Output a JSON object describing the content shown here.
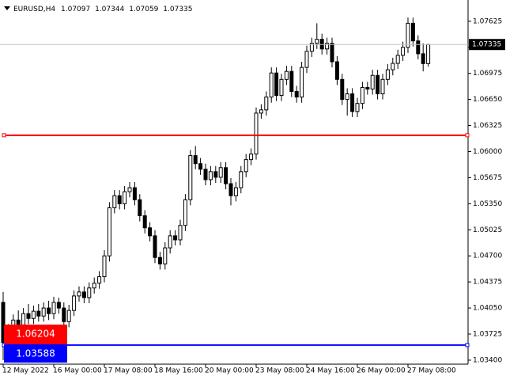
{
  "chart_data": {
    "type": "candlestick",
    "symbol": "EURUSD,H4",
    "categories": [
      "12 May 2022",
      null,
      null,
      null,
      null,
      null,
      null,
      null,
      null,
      null,
      "16 May 00:00",
      null,
      null,
      null,
      null,
      null,
      null,
      null,
      null,
      null,
      "17 May 08:00",
      null,
      null,
      null,
      null,
      null,
      null,
      null,
      null,
      null,
      "18 May 16:00",
      null,
      null,
      null,
      null,
      null,
      null,
      null,
      null,
      null,
      "20 May 00:00",
      null,
      null,
      null,
      null,
      null,
      null,
      null,
      null,
      null,
      "23 May 08:00",
      null,
      null,
      null,
      null,
      null,
      null,
      null,
      null,
      null,
      "24 May 16:00",
      null,
      null,
      null,
      null,
      null,
      null,
      null,
      null,
      null,
      "26 May 00:00",
      null,
      null,
      null,
      null,
      null,
      null,
      null,
      null,
      null,
      "27 May 08:00",
      null,
      null,
      null,
      null
    ],
    "open": [
      1.0412,
      1.0362,
      1.0378,
      1.039,
      1.0384,
      1.0398,
      1.0392,
      1.0401,
      1.0395,
      1.0405,
      1.0398,
      1.0412,
      1.0405,
      1.0388,
      1.0402,
      1.042,
      1.0425,
      1.0418,
      1.043,
      1.0436,
      1.0444,
      1.047,
      1.053,
      1.0545,
      1.0535,
      1.055,
      1.0555,
      1.054,
      1.052,
      1.0505,
      1.0495,
      1.0468,
      1.046,
      1.048,
      1.0495,
      1.049,
      1.0508,
      1.054,
      1.0595,
      1.0585,
      1.0578,
      1.0565,
      1.0575,
      1.0568,
      1.058,
      1.056,
      1.0545,
      1.0555,
      1.0575,
      1.059,
      1.0597,
      1.0648,
      1.0652,
      1.0668,
      1.0698,
      1.067,
      1.069,
      1.07,
      1.0675,
      1.0668,
      1.0705,
      1.0725,
      1.0735,
      1.074,
      1.0728,
      1.0735,
      1.0712,
      1.069,
      1.0665,
      1.0672,
      1.065,
      1.066,
      1.068,
      1.0678,
      1.0695,
      1.0672,
      1.069,
      1.0702,
      1.071,
      1.072,
      1.073,
      1.076,
      1.0738,
      1.0722,
      1.07097
    ],
    "high": [
      1.0425,
      1.0385,
      1.0397,
      1.0402,
      1.0405,
      1.041,
      1.0408,
      1.041,
      1.0412,
      1.0414,
      1.0419,
      1.0418,
      1.0412,
      1.0409,
      1.0427,
      1.0432,
      1.0432,
      1.0437,
      1.0443,
      1.0451,
      1.0477,
      1.0537,
      1.0552,
      1.0552,
      1.0557,
      1.0562,
      1.0562,
      1.0547,
      1.0527,
      1.0512,
      1.0502,
      1.0475,
      1.0487,
      1.0502,
      1.0502,
      1.0515,
      1.0547,
      1.0602,
      1.0607,
      1.0592,
      1.0585,
      1.0582,
      1.0582,
      1.0587,
      1.0587,
      1.0567,
      1.0562,
      1.0582,
      1.0597,
      1.0604,
      1.0655,
      1.0659,
      1.0675,
      1.0705,
      1.0705,
      1.0697,
      1.0707,
      1.0707,
      1.0682,
      1.0712,
      1.0732,
      1.0742,
      1.076,
      1.0747,
      1.0742,
      1.0742,
      1.0719,
      1.0697,
      1.0679,
      1.0679,
      1.0667,
      1.0687,
      1.0687,
      1.0702,
      1.0702,
      1.0697,
      1.0709,
      1.0717,
      1.0727,
      1.0737,
      1.0767,
      1.0767,
      1.0745,
      1.0735,
      1.07344
    ],
    "low": [
      1.034,
      1.0355,
      1.0371,
      1.0377,
      1.0377,
      1.0385,
      1.0385,
      1.0388,
      1.0388,
      1.039,
      1.0391,
      1.0398,
      1.038,
      1.0381,
      1.0395,
      1.0413,
      1.0411,
      1.0411,
      1.0423,
      1.0429,
      1.0437,
      1.0463,
      1.0523,
      1.0528,
      1.0528,
      1.0543,
      1.0533,
      1.0513,
      1.0498,
      1.0488,
      1.0461,
      1.0453,
      1.0453,
      1.0473,
      1.0483,
      1.0483,
      1.0501,
      1.0533,
      1.0578,
      1.0571,
      1.0558,
      1.0558,
      1.0561,
      1.0561,
      1.0553,
      1.0533,
      1.0538,
      1.0548,
      1.0568,
      1.0583,
      1.059,
      1.0641,
      1.0645,
      1.0661,
      1.0663,
      1.0663,
      1.0683,
      1.0668,
      1.0661,
      1.0661,
      1.0698,
      1.0718,
      1.0728,
      1.0721,
      1.0721,
      1.0705,
      1.0683,
      1.0658,
      1.0645,
      1.0643,
      1.0643,
      1.0653,
      1.0671,
      1.0671,
      1.0665,
      1.0665,
      1.0683,
      1.0695,
      1.0703,
      1.0713,
      1.0723,
      1.0731,
      1.0715,
      1.07,
      1.07059
    ],
    "close": [
      1.0362,
      1.0378,
      1.039,
      1.0384,
      1.0398,
      1.0392,
      1.0401,
      1.0395,
      1.0405,
      1.0398,
      1.0412,
      1.0405,
      1.0388,
      1.0402,
      1.042,
      1.0425,
      1.0418,
      1.043,
      1.0436,
      1.0444,
      1.047,
      1.053,
      1.0545,
      1.0535,
      1.055,
      1.0555,
      1.054,
      1.052,
      1.0505,
      1.0495,
      1.0468,
      1.046,
      1.048,
      1.0495,
      1.049,
      1.0508,
      1.054,
      1.0595,
      1.0585,
      1.0578,
      1.0565,
      1.0575,
      1.0568,
      1.058,
      1.056,
      1.0545,
      1.0555,
      1.0575,
      1.059,
      1.0597,
      1.0648,
      1.0652,
      1.0668,
      1.0698,
      1.067,
      1.069,
      1.07,
      1.0675,
      1.0668,
      1.0705,
      1.0725,
      1.0735,
      1.074,
      1.0728,
      1.0735,
      1.0712,
      1.069,
      1.0665,
      1.0672,
      1.065,
      1.066,
      1.068,
      1.0678,
      1.0695,
      1.0672,
      1.069,
      1.0702,
      1.071,
      1.072,
      1.073,
      1.076,
      1.0738,
      1.0722,
      1.07097,
      1.07335
    ],
    "up_color": "#ffffff",
    "down_color": "#000000",
    "ylim": [
      1.0335,
      1.0789
    ],
    "yticks": [
      {
        "value": 1.07625,
        "label": "1.07625"
      },
      {
        "value": 1.073,
        "label": "1.07300"
      },
      {
        "value": 1.06975,
        "label": "1.06975"
      },
      {
        "value": 1.0665,
        "label": "1.06650"
      },
      {
        "value": 1.06325,
        "label": "1.06325"
      },
      {
        "value": 1.06,
        "label": "1.06000"
      },
      {
        "value": 1.05675,
        "label": "1.05675"
      },
      {
        "value": 1.0535,
        "label": "1.05350"
      },
      {
        "value": 1.05025,
        "label": "1.05025"
      },
      {
        "value": 1.047,
        "label": "1.04700"
      },
      {
        "value": 1.04375,
        "label": "1.04375"
      },
      {
        "value": 1.0405,
        "label": "1.04050"
      },
      {
        "value": 1.03725,
        "label": "1.03725"
      },
      {
        "value": 1.034,
        "label": "1.03400"
      }
    ],
    "hlines": [
      {
        "value": 1.06204,
        "color": "#ff0000"
      },
      {
        "value": 1.03588,
        "color": "#0000ff"
      }
    ]
  }
}
